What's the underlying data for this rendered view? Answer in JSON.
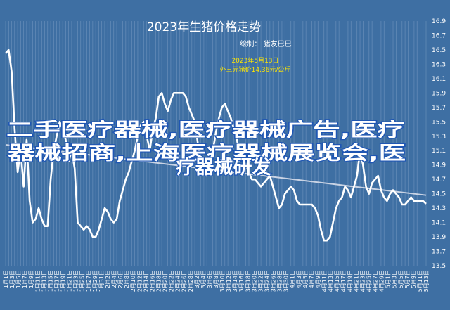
{
  "chart_data": {
    "type": "line",
    "title": "2023年生猪价格走势",
    "author": "绘制：  猪友巴巴",
    "annotation": {
      "line1": "2023年5月13日",
      "line2": "外三元猪价14.36元/公斤"
    },
    "watermark": {
      "line1": "二手医疗器械,医疗器械广告,医疗",
      "line2": "器械招商,上海医疗器械展览会,医",
      "line3": "疗器械研发"
    },
    "yticks": [
      "13.5",
      "13.7",
      "13.9",
      "14.1",
      "14.3",
      "14.5",
      "14.7",
      "14.9",
      "15.1",
      "15.3",
      "15.5",
      "15.7",
      "15.9",
      "16.1",
      "16.3",
      "16.5",
      "16.7",
      "16.9"
    ],
    "ylim": [
      13.5,
      16.9
    ],
    "xticks": [
      "1月1日",
      "1月3日",
      "1月5日",
      "1月7日",
      "1月9日",
      "1月11日",
      "1月13日",
      "1月15日",
      "1月17日",
      "1月19日",
      "1月21日",
      "1月23日",
      "1月25日",
      "1月27日",
      "1月29日",
      "1月31日",
      "2月2日",
      "2月4日",
      "2月6日",
      "2月8日",
      "2月10日",
      "2月12日",
      "2月14日",
      "2月16日",
      "2月18日",
      "2月20日",
      "2月22日",
      "2月24日",
      "2月26日",
      "2月28日",
      "3月2日",
      "3月4日",
      "3月6日",
      "3月8日",
      "3月10日",
      "3月12日",
      "3月14日",
      "3月16日",
      "3月18日",
      "3月20日",
      "3月22日",
      "3月24日",
      "3月26日",
      "3月28日",
      "3月30日",
      "4月1日",
      "4月3日",
      "4月5日",
      "4月7日",
      "4月9日",
      "4月11日",
      "4月13日",
      "4月15日",
      "4月17日",
      "4月19日",
      "4月21日",
      "4月23日",
      "4月25日",
      "4月27日",
      "4月29日",
      "5月1日",
      "5月3日",
      "5月5日",
      "5月7日",
      "5月9日",
      "5月11日",
      "5月13日"
    ],
    "values": [
      16.45,
      16.5,
      16.2,
      15.4,
      14.8,
      15.1,
      14.6,
      15.25,
      14.4,
      14.1,
      14.15,
      14.3,
      14.15,
      14.05,
      14.05,
      14.7,
      15.1,
      15.3,
      15.5,
      15.4,
      15.25,
      14.95,
      15.1,
      14.85,
      14.1,
      14.05,
      14.0,
      14.05,
      14.0,
      13.9,
      13.9,
      14.0,
      14.15,
      14.3,
      14.25,
      14.15,
      14.1,
      14.15,
      14.4,
      14.55,
      14.7,
      14.8,
      14.95,
      15.1,
      15.3,
      15.45,
      15.5,
      15.3,
      15.1,
      15.4,
      15.55,
      15.85,
      15.9,
      15.75,
      15.65,
      15.8,
      15.9,
      15.9,
      15.9,
      15.9,
      15.85,
      15.7,
      15.6,
      15.5,
      15.2,
      14.95,
      14.8,
      14.75,
      14.9,
      15.1,
      15.35,
      15.55,
      15.7,
      15.75,
      15.65,
      15.55,
      15.4,
      15.25,
      15.05,
      15.0,
      14.9,
      14.8,
      14.7,
      14.7,
      14.65,
      14.6,
      14.65,
      14.7,
      14.75,
      14.6,
      14.45,
      14.3,
      14.35,
      14.5,
      14.55,
      14.6,
      14.55,
      14.4,
      14.35,
      14.35,
      14.35,
      14.35,
      14.35,
      14.3,
      14.2,
      14.0,
      13.85,
      13.85,
      13.9,
      14.1,
      14.3,
      14.4,
      14.45,
      14.6,
      14.55,
      14.45,
      14.6,
      14.75,
      15.1,
      14.9,
      14.6,
      14.5,
      14.65,
      14.7,
      14.75,
      14.55,
      14.45,
      14.4,
      14.5,
      14.55,
      14.5,
      14.45,
      14.35,
      14.35,
      14.4,
      14.45,
      14.4,
      14.4,
      14.4,
      14.4,
      14.36
    ],
    "trend": {
      "start": 15.18,
      "end": 14.48
    },
    "colors": {
      "background": "#3e6fa3",
      "line": "#ffffff",
      "trend": "#c9d3e4",
      "annotation": "#ffe600",
      "watermark_stroke": "#1f56b3"
    }
  }
}
